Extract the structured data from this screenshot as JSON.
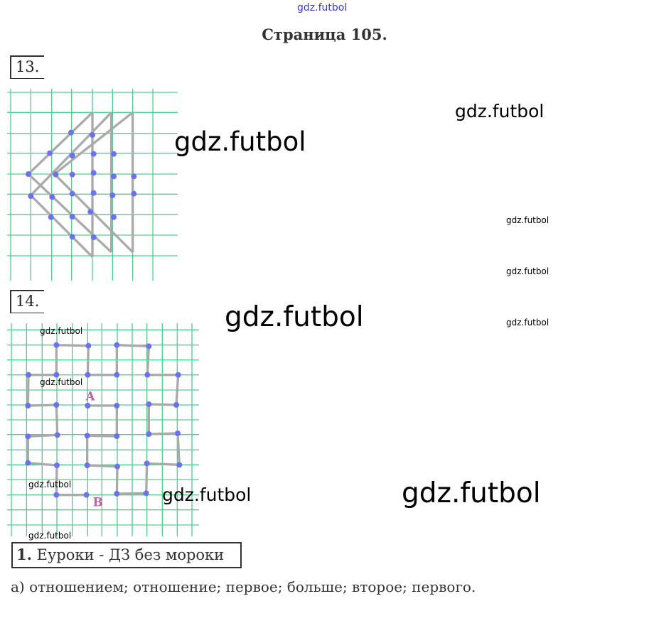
{
  "header": {
    "link": "gdz.futbol",
    "title": "Страница 105."
  },
  "tasks": {
    "t13": {
      "number": "13."
    },
    "t14": {
      "number": "14.",
      "label_a": "A",
      "label_b": "B"
    },
    "t1": {
      "number": "1.",
      "text": "Еуроки - ДЗ без мороки",
      "answer": "а) отношением;   отношение;   первое;   больше; второе; первого."
    }
  },
  "watermark": "gdz.futbol",
  "colors": {
    "grid": "#4fd18e",
    "line": "#aaaaaa",
    "dot": "#6a72f0",
    "label": "#c060a0",
    "link": "#3a3ad0"
  }
}
